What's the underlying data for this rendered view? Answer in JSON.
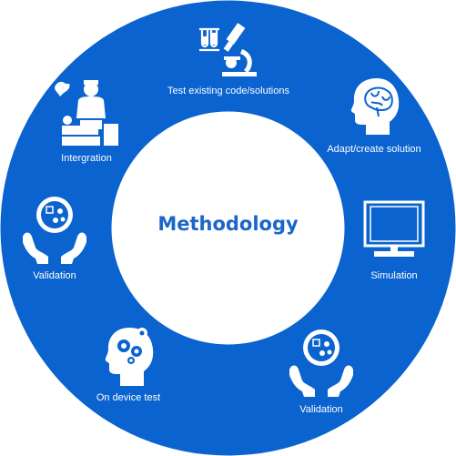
{
  "center": {
    "title": "Methodology"
  },
  "steps": [
    {
      "label": "Test existing code/solutions",
      "icon": "microscope-test-tubes-icon"
    },
    {
      "label": "Adapt/create solution",
      "icon": "brain-head-icon"
    },
    {
      "label": "Simulation",
      "icon": "computer-monitor-icon"
    },
    {
      "label": "Validation",
      "icon": "hands-petri-dish-icon"
    },
    {
      "label": "On device test",
      "icon": "gears-head-icon"
    },
    {
      "label": "Validation",
      "icon": "hands-petri-dish-icon"
    },
    {
      "label": "Intergration",
      "icon": "surgeon-patient-icon"
    }
  ],
  "colors": {
    "ring": "#0a63cf",
    "text": "#ffffff",
    "title": "#1a66c9"
  }
}
